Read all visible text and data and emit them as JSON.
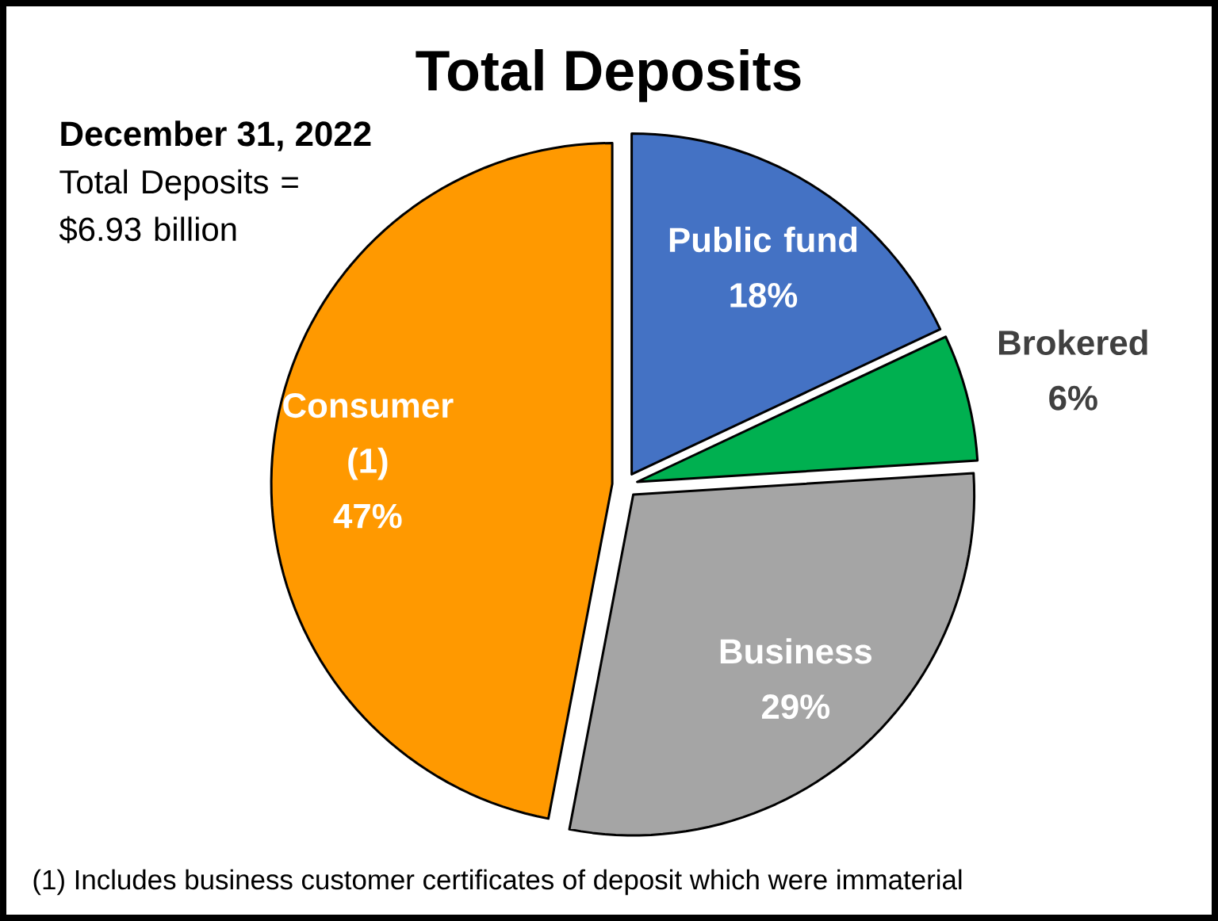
{
  "chart_data": {
    "type": "pie",
    "title": "Total Deposits",
    "subtitle": "December 31, 2022",
    "categories": [
      "Public fund",
      "Brokered",
      "Business",
      "Consumer (1)"
    ],
    "values": [
      18,
      6,
      29,
      47
    ],
    "colors": [
      "#4472c4",
      "#00b050",
      "#a5a5a5",
      "#ff9900"
    ],
    "value_labels": [
      "18%",
      "6%",
      "29%",
      "47%"
    ],
    "annotations": [
      "Total Deposits = $6.93 billion",
      "(1) Includes business customer certificates of deposit which were immaterial"
    ]
  }
}
